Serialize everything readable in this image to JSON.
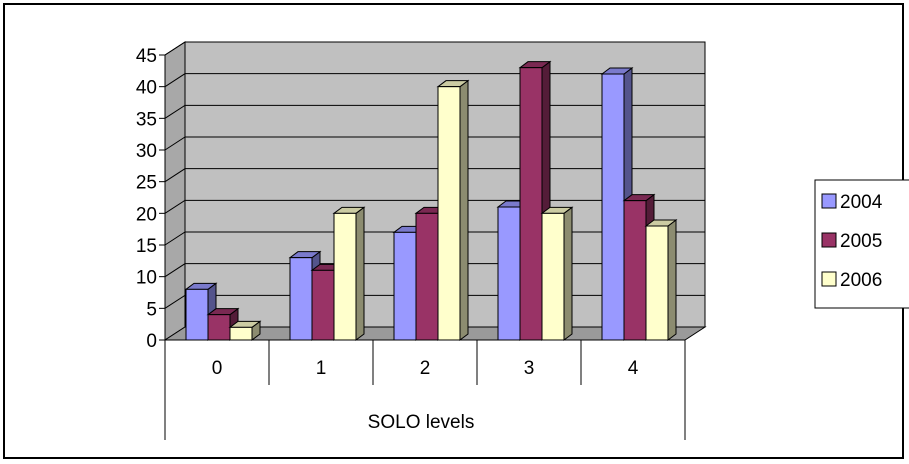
{
  "chart_data": {
    "type": "bar",
    "categories": [
      "0",
      "1",
      "2",
      "3",
      "4"
    ],
    "xlabel": "SOLO levels",
    "ylabel": "",
    "title": "",
    "ylim": [
      0,
      45
    ],
    "yticks": [
      "0",
      "5",
      "10",
      "15",
      "20",
      "25",
      "30",
      "35",
      "40",
      "45"
    ],
    "grid": true,
    "legend_position": "right",
    "series": [
      {
        "name": "2004",
        "values": [
          8,
          13,
          17,
          21,
          42
        ],
        "color": "#9999ff"
      },
      {
        "name": "2005",
        "values": [
          4,
          11,
          20,
          43,
          22
        ],
        "color": "#993366"
      },
      {
        "name": "2006",
        "values": [
          2,
          20,
          40,
          20,
          18
        ],
        "color": "#ffffcc"
      }
    ],
    "wall_color": "#c0c0c0"
  }
}
